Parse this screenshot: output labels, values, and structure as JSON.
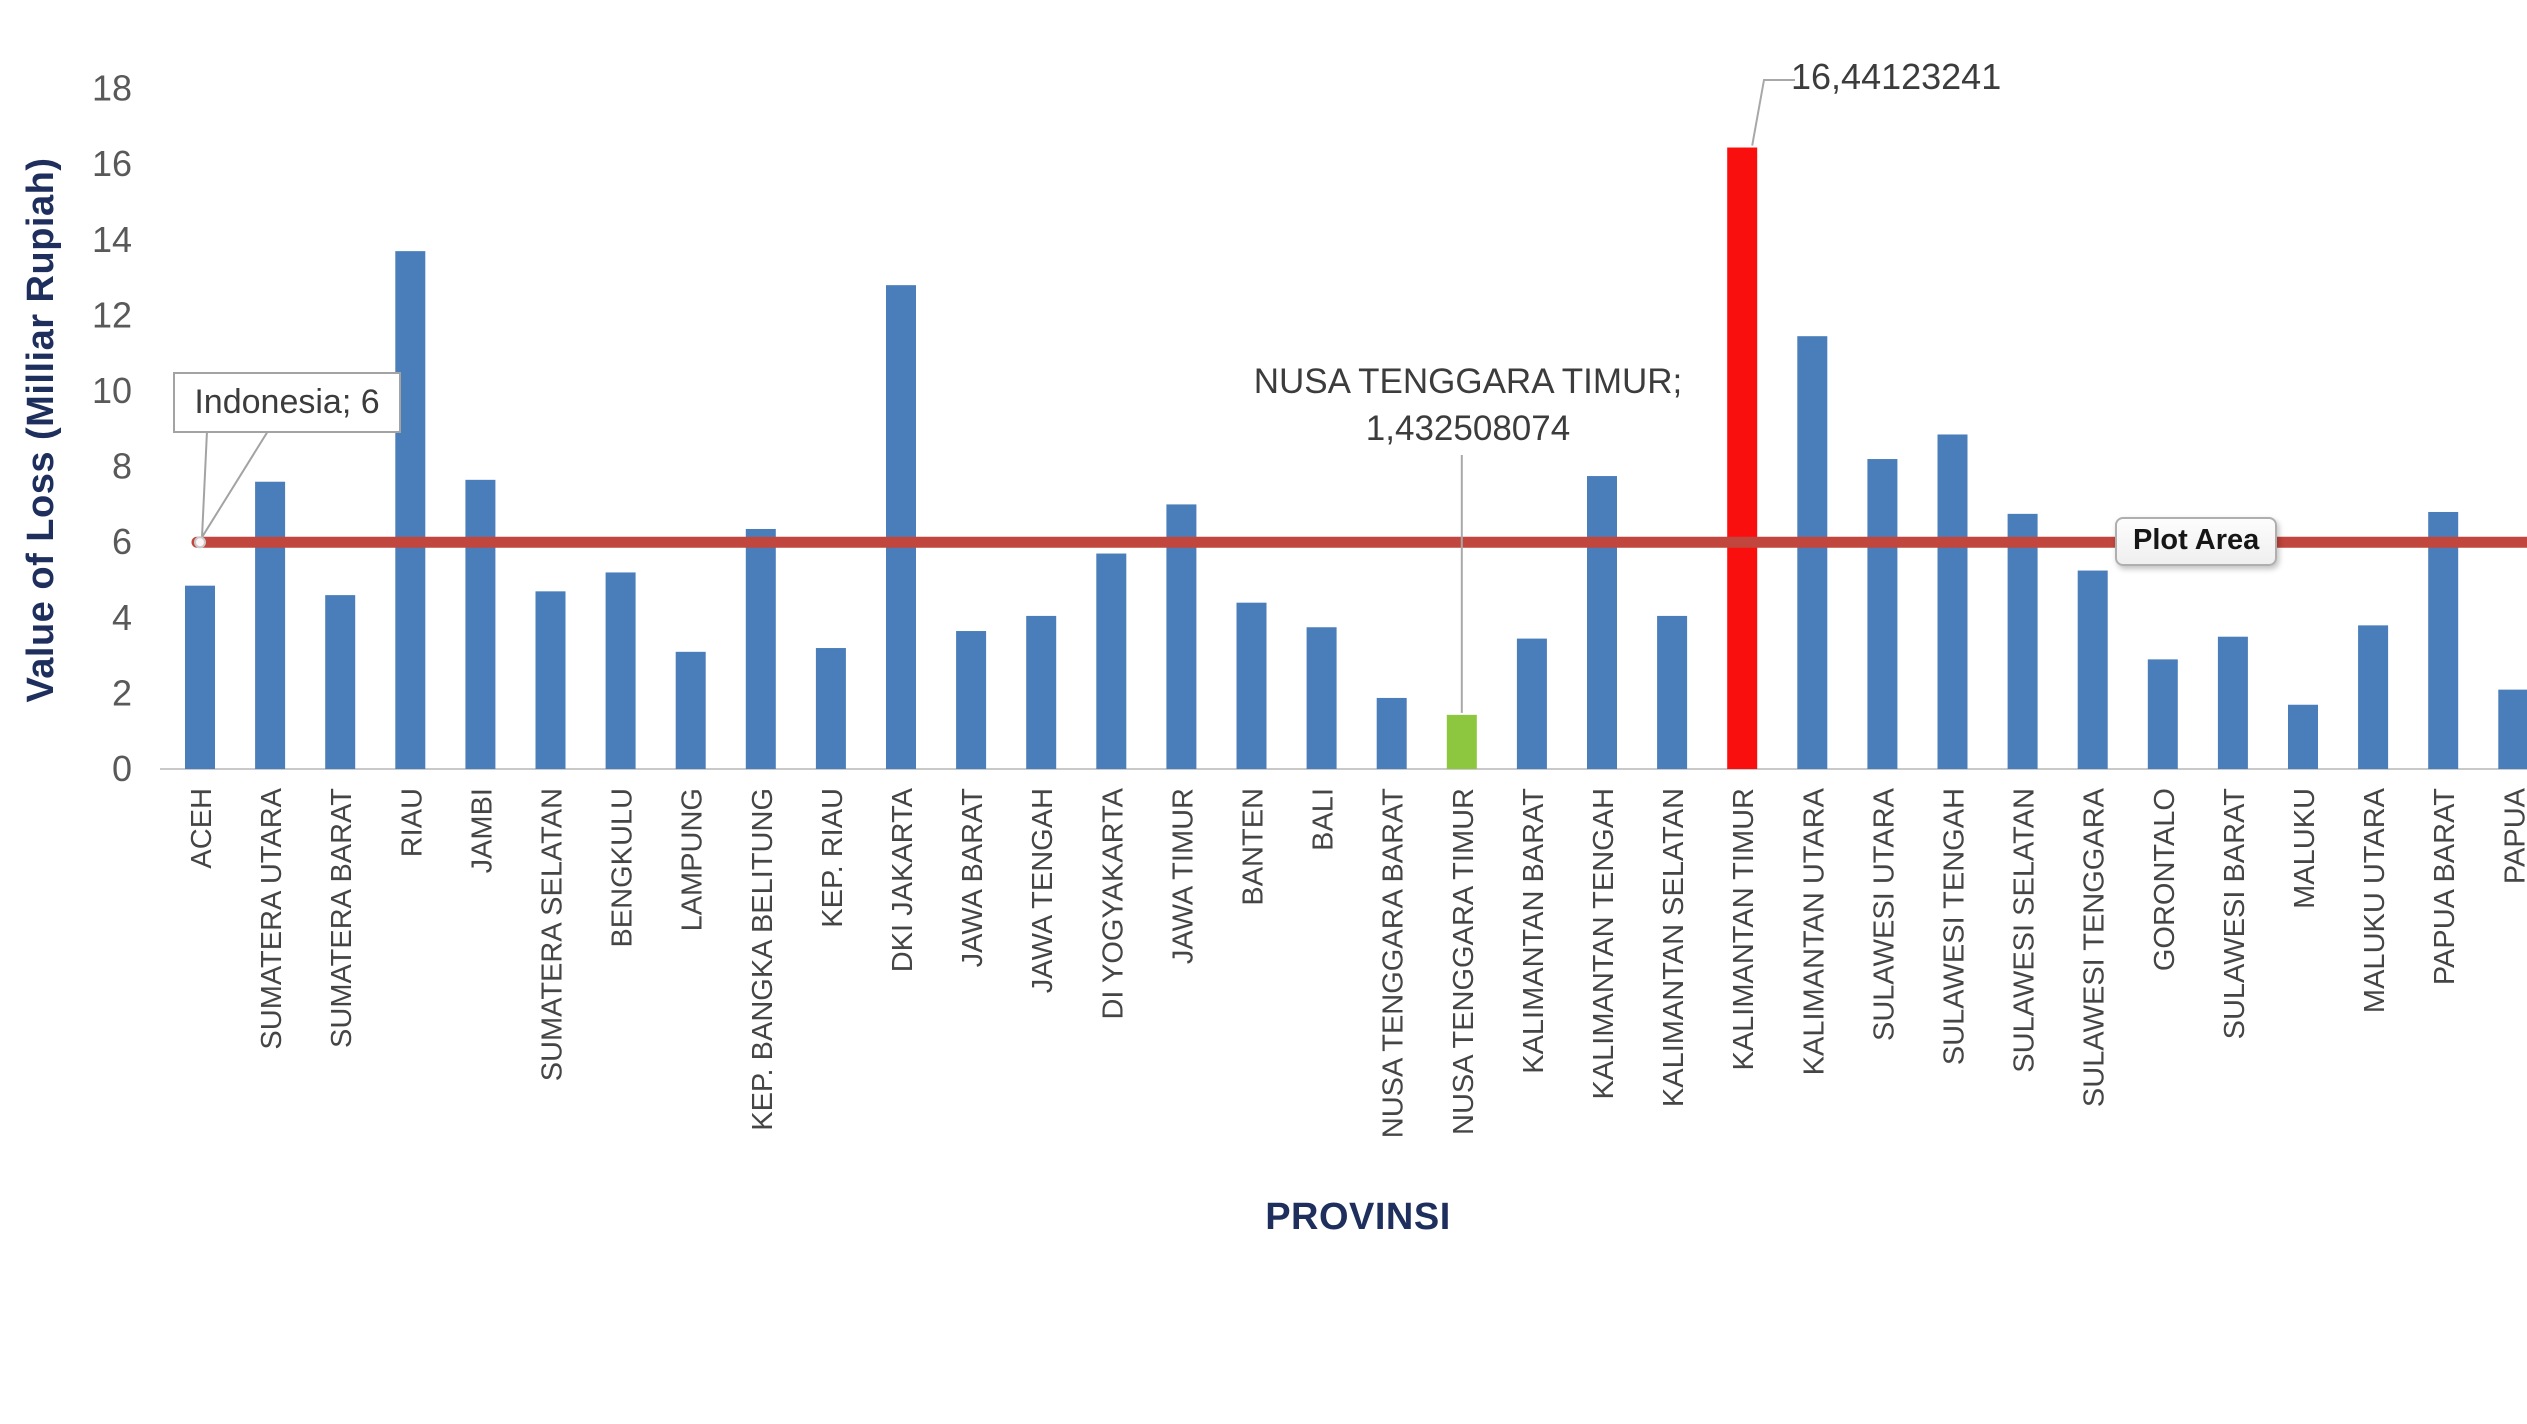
{
  "chart_data": {
    "type": "bar",
    "title": "",
    "xlabel": "PROVINSI",
    "ylabel": "Value of Loss (Milliar Rupiah)",
    "ylim": [
      0,
      18
    ],
    "ytick_step": 2,
    "ytick_labels": [
      "0",
      "2",
      "4",
      "6",
      "8",
      "10",
      "12",
      "14",
      "16",
      "18"
    ],
    "grid": false,
    "legend": "none",
    "categories": [
      "ACEH",
      "SUMATERA UTARA",
      "SUMATERA BARAT",
      "RIAU",
      "JAMBI",
      "SUMATERA SELATAN",
      "BENGKULU",
      "LAMPUNG",
      "KEP. BANGKA BELITUNG",
      "KEP. RIAU",
      "DKI JAKARTA",
      "JAWA BARAT",
      "JAWA TENGAH",
      "DI YOGYAKARTA",
      "JAWA TIMUR",
      "BANTEN",
      "BALI",
      "NUSA TENGGARA BARAT",
      "NUSA TENGGARA TIMUR",
      "KALIMANTAN BARAT",
      "KALIMANTAN TENGAH",
      "KALIMANTAN SELATAN",
      "KALIMANTAN TIMUR",
      "KALIMANTAN UTARA",
      "SULAWESI UTARA",
      "SULAWESI TENGAH",
      "SULAWESI SELATAN",
      "SULAWESI TENGGARA",
      "GORONTALO",
      "SULAWESI BARAT",
      "MALUKU",
      "MALUKU UTARA",
      "PAPUA BARAT",
      "PAPUA"
    ],
    "values": [
      4.85,
      7.6,
      4.6,
      13.7,
      7.65,
      4.7,
      5.2,
      3.1,
      6.35,
      3.2,
      12.8,
      3.65,
      4.05,
      5.7,
      7.0,
      4.4,
      3.75,
      1.88,
      1.432508074,
      3.45,
      7.75,
      4.05,
      16.44123241,
      11.45,
      8.2,
      8.85,
      6.75,
      5.25,
      2.9,
      3.5,
      1.7,
      3.8,
      6.8,
      2.1
    ],
    "bar_color_default": "#4A7EBA",
    "bar_color_overrides": {
      "KALIMANTAN TIMUR": "#FA0F0F",
      "NUSA TENGGARA TIMUR": "#8DC63F"
    },
    "reference_line": {
      "name": "Indonesia",
      "value": 6,
      "color": "#C1463E"
    },
    "annotations": {
      "reference": {
        "target": "Indonesia",
        "label": "Indonesia; 6"
      },
      "max_bar": {
        "target": "KALIMANTAN TIMUR",
        "label": "16,44123241"
      },
      "min_highlight": {
        "target": "NUSA TENGGARA TIMUR",
        "label_line1": "NUSA TENGGARA TIMUR;",
        "label_line2": "1,432508074"
      }
    },
    "tooltip": {
      "text": "Plot Area"
    }
  },
  "colors": {
    "axis_title": "#1E2F5D",
    "tick_label": "#595959",
    "category_label": "#454545",
    "annotation_text": "#3C3C3C",
    "leader_line": "#A8A8A8",
    "axis_line": "#C9C9C9"
  }
}
